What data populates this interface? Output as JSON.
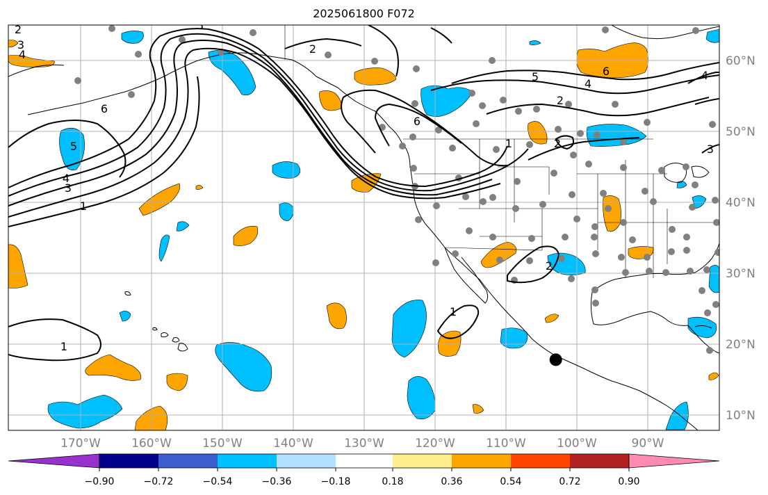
{
  "title": "2025061800 F072",
  "map": {
    "lon_range": [
      -180,
      -80
    ],
    "lat_range": [
      8,
      65
    ],
    "lon_ticks": [
      "170°W",
      "160°W",
      "150°W",
      "140°W",
      "130°W",
      "120°W",
      "110°W",
      "100°W",
      "90°W"
    ],
    "lat_ticks": [
      "60°N",
      "50°N",
      "40°N",
      "30°N",
      "20°N",
      "10°N"
    ],
    "grid": true,
    "contour_labels": [
      "1",
      "2",
      "3",
      "4",
      "5",
      "6"
    ],
    "marker": {
      "lon": -103.0,
      "lat": 17.8,
      "color": "#000000"
    },
    "station_dot_color": "#808080"
  },
  "colorbar": {
    "ticks": [
      "−0.90",
      "−0.72",
      "−0.54",
      "−0.36",
      "−0.18",
      "0.18",
      "0.36",
      "0.54",
      "0.72",
      "0.90"
    ],
    "colors": [
      "#9932cc",
      "#00008b",
      "#3a5fcd",
      "#00bfff",
      "#b0e2ff",
      "#ffffff",
      "#ffec8b",
      "#ffa500",
      "#ff4500",
      "#b22222",
      "#ff8cb0"
    ]
  },
  "colors": {
    "negative_fill": "#00bfff",
    "positive_fill": "#ffa500",
    "contour": "#000000",
    "grid": "#b0b0b0",
    "coast": "#000000"
  }
}
